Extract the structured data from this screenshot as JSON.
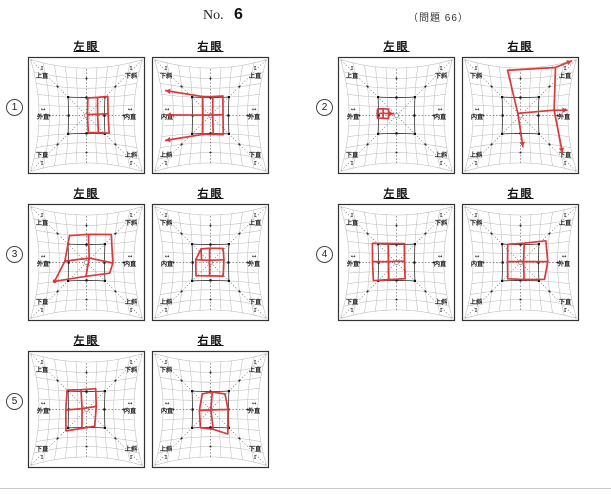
{
  "header": {
    "no_label": "No.",
    "no_value": "6",
    "problem_label": "（問題 66）"
  },
  "eye_titles": {
    "left": "左眼",
    "right": "右眼"
  },
  "muscle_labels": {
    "left": {
      "top_left": "上直",
      "top_right": "下斜",
      "mid_left": "外直",
      "mid_right": "内直",
      "bottom_left": "下直",
      "bottom_right": "上斜"
    },
    "right": {
      "top_left": "下斜",
      "top_right": "上直",
      "mid_left": "内直",
      "mid_right": "外直",
      "bottom_left": "上斜",
      "bottom_right": "下直"
    }
  },
  "arrow_glyphs": {
    "corner": "↕",
    "middle": "↔"
  },
  "colors": {
    "plot_red": "#d93a3a",
    "grid": "#bcbcbc",
    "axis": "#666666",
    "frame": "#333333",
    "inner_square": "#4a4a4a",
    "label": "#1a1a1a"
  },
  "charts": [
    {
      "number": "1",
      "left": {
        "figure": {
          "nine": [
            [
              0.15,
              1.95
            ],
            [
              1.2,
              2.0
            ],
            [
              2.3,
              2.05
            ],
            [
              0.1,
              0.1
            ],
            [
              1.25,
              0.15
            ],
            [
              2.4,
              0.2
            ],
            [
              0.2,
              -1.9
            ],
            [
              1.3,
              -1.9
            ],
            [
              2.45,
              -1.9
            ]
          ]
        }
      },
      "right": {
        "figure": {
          "nine": [
            [
              -0.85,
              2.1
            ],
            [
              0.25,
              2.1
            ],
            [
              1.35,
              2.15
            ],
            [
              -0.85,
              0.05
            ],
            [
              0.25,
              0.05
            ],
            [
              1.4,
              0.1
            ],
            [
              -0.85,
              -2.1
            ],
            [
              0.3,
              -2.1
            ],
            [
              1.4,
              -2.1
            ]
          ],
          "arrows": [
            [
              -0.85,
              2.1,
              -4.6,
              2.4
            ],
            [
              -0.85,
              0.05,
              -4.7,
              0.05
            ],
            [
              -0.85,
              -2.1,
              -4.6,
              -2.4
            ]
          ]
        }
      }
    },
    {
      "number": "2",
      "left": {
        "figure": {
          "nine": [
            [
              -2.1,
              0.7
            ],
            [
              -1.5,
              0.75
            ],
            [
              -0.9,
              0.7
            ],
            [
              -2.15,
              0.2
            ],
            [
              -1.5,
              0.25
            ],
            [
              -0.85,
              0.2
            ],
            [
              -2.1,
              -0.3
            ],
            [
              -1.5,
              -0.3
            ],
            [
              -0.9,
              -0.35
            ]
          ],
          "arrows": [
            [
              -0.85,
              0.2,
              -0.35,
              0.2
            ]
          ]
        }
      },
      "right": {
        "figure": {
          "polylines": [
            [
              [
                -1.25,
                4.75
              ],
              [
                3.3,
                4.75
              ]
            ],
            [
              [
                -1.25,
                4.75
              ],
              [
                -0.3,
                0.25
              ]
            ],
            [
              [
                -0.3,
                0.25
              ],
              [
                3.65,
                0.55
              ]
            ],
            [
              [
                3.3,
                4.75
              ],
              [
                3.65,
                0.55
              ]
            ]
          ],
          "arrows": [
            [
              3.3,
              4.75,
              4.6,
              5.0
            ],
            [
              3.65,
              0.55,
              4.9,
              0.5
            ],
            [
              -0.3,
              0.25,
              0.25,
              -3.4
            ],
            [
              3.65,
              0.55,
              4.15,
              -3.6
            ]
          ]
        }
      }
    },
    {
      "number": "3",
      "left": {
        "figure": {
          "nine": [
            [
              -1.8,
              2.9
            ],
            [
              0.2,
              3.1
            ],
            [
              2.6,
              2.95
            ],
            [
              -2.4,
              0.15
            ],
            [
              0.3,
              0.5
            ],
            [
              2.9,
              -0.05
            ],
            [
              -3.4,
              -1.95
            ],
            [
              -0.05,
              -1.55
            ],
            [
              2.55,
              -1.15
            ]
          ],
          "dots": [
            [
              -3.4,
              -1.95
            ]
          ]
        }
      },
      "right": {
        "figure": {
          "nine": [
            [
              -1.05,
              1.5
            ],
            [
              -0.1,
              1.6
            ],
            [
              1.4,
              1.55
            ],
            [
              -1.65,
              0.3
            ],
            [
              -0.1,
              0.25
            ],
            [
              1.5,
              0.3
            ],
            [
              -1.6,
              -1.45
            ],
            [
              -0.1,
              -1.5
            ],
            [
              1.4,
              -1.5
            ]
          ],
          "polylines": [
            [
              [
                -1.05,
                1.5
              ],
              [
                -1.0,
                0.28
              ]
            ]
          ]
        }
      }
    },
    {
      "number": "4",
      "left": {
        "figure": {
          "nine": [
            [
              -2.6,
              2.05
            ],
            [
              -0.9,
              2.1
            ],
            [
              0.85,
              2.1
            ],
            [
              -2.65,
              0.1
            ],
            [
              -0.9,
              0.1
            ],
            [
              0.9,
              0.15
            ],
            [
              -2.5,
              -1.95
            ],
            [
              -0.85,
              -1.9
            ],
            [
              0.95,
              -1.8
            ]
          ]
        }
      },
      "right": {
        "figure": {
          "nine": [
            [
              -1.4,
              2.0
            ],
            [
              0.4,
              2.15
            ],
            [
              2.7,
              2.3
            ],
            [
              -1.45,
              0.1
            ],
            [
              0.35,
              0.1
            ],
            [
              3.0,
              0.1
            ],
            [
              -1.4,
              -1.8
            ],
            [
              0.4,
              -1.9
            ],
            [
              2.6,
              -1.8
            ]
          ]
        }
      }
    },
    {
      "number": "5",
      "left": {
        "figure": {
          "nine": [
            [
              -2.1,
              2.1
            ],
            [
              -0.6,
              2.2
            ],
            [
              1.0,
              2.3
            ],
            [
              -2.3,
              -0.05
            ],
            [
              -0.5,
              0.1
            ],
            [
              1.1,
              0.35
            ],
            [
              -2.2,
              -2.3
            ],
            [
              -0.5,
              -2.1
            ],
            [
              0.9,
              -1.85
            ]
          ]
        }
      },
      "right": {
        "figure": {
          "nine": [
            [
              -0.9,
              1.75
            ],
            [
              0.2,
              1.95
            ],
            [
              1.6,
              1.7
            ],
            [
              -1.25,
              -0.1
            ],
            [
              0.05,
              -0.05
            ],
            [
              1.95,
              0.0
            ],
            [
              -1.1,
              -2.0
            ],
            [
              0.3,
              -2.2
            ],
            [
              1.85,
              -2.65
            ]
          ]
        }
      }
    }
  ]
}
